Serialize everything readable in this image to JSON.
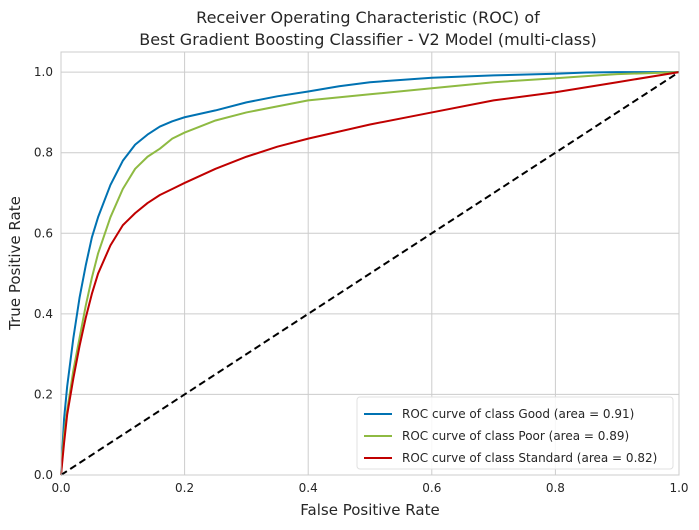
{
  "chart_data": {
    "type": "line",
    "title": [
      "Receiver Operating Characteristic (ROC) of",
      "Best Gradient Boosting Classifier - V2 Model (multi-class)"
    ],
    "xlabel": "False Positive Rate",
    "ylabel": "True Positive Rate",
    "xlim": [
      0.0,
      1.0
    ],
    "ylim": [
      0.0,
      1.05
    ],
    "x_ticks": [
      "0.0",
      "0.2",
      "0.4",
      "0.6",
      "0.8",
      "1.0"
    ],
    "y_ticks": [
      "0.0",
      "0.2",
      "0.4",
      "0.6",
      "0.8",
      "1.0"
    ],
    "grid": true,
    "legend_position": "lower-right",
    "series": [
      {
        "name": "ROC curve of class Good (area = 0.91)",
        "color": "#0072B2",
        "x": [
          0,
          0.005,
          0.01,
          0.02,
          0.03,
          0.04,
          0.05,
          0.06,
          0.08,
          0.1,
          0.12,
          0.14,
          0.16,
          0.18,
          0.2,
          0.25,
          0.3,
          0.35,
          0.4,
          0.45,
          0.5,
          0.6,
          0.7,
          0.8,
          0.85,
          0.9,
          1.0
        ],
        "y": [
          0,
          0.14,
          0.22,
          0.34,
          0.44,
          0.52,
          0.59,
          0.64,
          0.72,
          0.78,
          0.82,
          0.845,
          0.865,
          0.878,
          0.888,
          0.905,
          0.925,
          0.94,
          0.952,
          0.965,
          0.975,
          0.986,
          0.992,
          0.996,
          0.999,
          1.0,
          1.0
        ]
      },
      {
        "name": "ROC curve of class Poor (area = 0.89)",
        "color": "#8EBA42",
        "x": [
          0,
          0.005,
          0.01,
          0.02,
          0.03,
          0.04,
          0.05,
          0.06,
          0.08,
          0.1,
          0.12,
          0.14,
          0.16,
          0.18,
          0.2,
          0.25,
          0.3,
          0.35,
          0.4,
          0.5,
          0.6,
          0.7,
          0.8,
          0.85,
          0.9,
          1.0
        ],
        "y": [
          0,
          0.1,
          0.16,
          0.26,
          0.34,
          0.42,
          0.49,
          0.55,
          0.64,
          0.71,
          0.76,
          0.79,
          0.81,
          0.835,
          0.85,
          0.88,
          0.9,
          0.915,
          0.93,
          0.945,
          0.96,
          0.975,
          0.985,
          0.99,
          0.995,
          1.0
        ]
      },
      {
        "name": "ROC curve of class Standard (area = 0.82)",
        "color": "#C00000",
        "x": [
          0,
          0.005,
          0.01,
          0.02,
          0.03,
          0.04,
          0.05,
          0.06,
          0.08,
          0.1,
          0.12,
          0.14,
          0.16,
          0.18,
          0.2,
          0.25,
          0.3,
          0.35,
          0.4,
          0.5,
          0.6,
          0.7,
          0.8,
          0.9,
          1.0
        ],
        "y": [
          0,
          0.08,
          0.15,
          0.24,
          0.32,
          0.39,
          0.45,
          0.5,
          0.57,
          0.62,
          0.65,
          0.675,
          0.695,
          0.71,
          0.725,
          0.76,
          0.79,
          0.815,
          0.835,
          0.87,
          0.9,
          0.93,
          0.95,
          0.975,
          1.0
        ]
      },
      {
        "name": "",
        "color": "#000000",
        "dashed": true,
        "x": [
          0,
          1
        ],
        "y": [
          0,
          1
        ]
      }
    ]
  }
}
